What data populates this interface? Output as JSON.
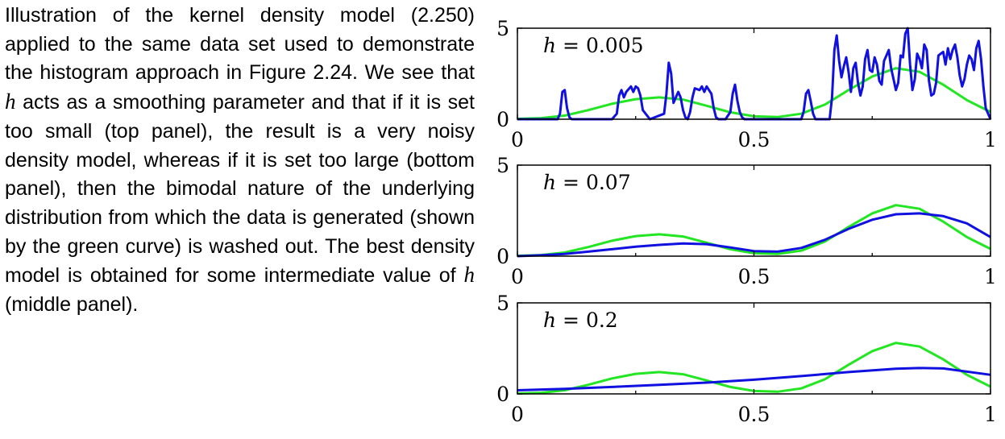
{
  "caption": {
    "part1": "Illustration of the kernel density model (2.250) applied to the same data set used to demonstrate the histogram approach in Figure 2.24. We see that ",
    "math1": "h",
    "part2": " acts as a smoothing parameter and that if it is set too small (top panel), the result is a very noisy density model, whereas if it is set too large (bottom panel), then the bimodal nature of the underlying distribution from which the data is generated (shown by the green curve) is washed out. The best den­sity model is obtained for some intermedi­ate value of ",
    "math2": "h",
    "part3": " (middle panel)."
  },
  "colors": {
    "true_density": "#22e622",
    "kde": "#1010e0"
  },
  "chart_data": [
    {
      "type": "line",
      "label_var": "h",
      "label_rest": " = 0.005",
      "bandwidth": 0.005,
      "xlim": [
        0,
        1
      ],
      "ylim": [
        0,
        5
      ],
      "xticks": [
        "0",
        "0.5",
        "1"
      ],
      "yticks": [
        "0",
        "5"
      ],
      "series": [
        {
          "role": "true-density",
          "x": [
            0,
            0.05,
            0.1,
            0.15,
            0.2,
            0.25,
            0.3,
            0.35,
            0.4,
            0.45,
            0.5,
            0.55,
            0.6,
            0.65,
            0.7,
            0.75,
            0.8,
            0.85,
            0.9,
            0.95,
            1.0
          ],
          "y": [
            0.02,
            0.06,
            0.2,
            0.5,
            0.85,
            1.1,
            1.2,
            1.08,
            0.74,
            0.38,
            0.16,
            0.12,
            0.3,
            0.8,
            1.6,
            2.35,
            2.8,
            2.6,
            1.9,
            1.05,
            0.4
          ]
        },
        {
          "role": "kde",
          "x": [
            0,
            0.085,
            0.09,
            0.095,
            0.1,
            0.105,
            0.11,
            0.115,
            0.2,
            0.21,
            0.215,
            0.22,
            0.225,
            0.23,
            0.24,
            0.245,
            0.25,
            0.255,
            0.26,
            0.265,
            0.28,
            0.31,
            0.315,
            0.32,
            0.325,
            0.33,
            0.335,
            0.34,
            0.345,
            0.35,
            0.355,
            0.36,
            0.365,
            0.37,
            0.375,
            0.385,
            0.39,
            0.395,
            0.4,
            0.405,
            0.41,
            0.415,
            0.42,
            0.425,
            0.43,
            0.44,
            0.45,
            0.455,
            0.46,
            0.465,
            0.47,
            0.475,
            0.48,
            0.6,
            0.605,
            0.61,
            0.615,
            0.62,
            0.625,
            0.63,
            0.66,
            0.665,
            0.67,
            0.675,
            0.68,
            0.685,
            0.69,
            0.695,
            0.7,
            0.705,
            0.71,
            0.715,
            0.72,
            0.725,
            0.73,
            0.735,
            0.74,
            0.745,
            0.75,
            0.755,
            0.76,
            0.765,
            0.77,
            0.775,
            0.78,
            0.785,
            0.79,
            0.795,
            0.8,
            0.805,
            0.81,
            0.815,
            0.82,
            0.825,
            0.83,
            0.835,
            0.84,
            0.845,
            0.85,
            0.855,
            0.86,
            0.865,
            0.87,
            0.875,
            0.88,
            0.885,
            0.89,
            0.895,
            0.9,
            0.905,
            0.91,
            0.915,
            0.92,
            0.925,
            0.93,
            0.935,
            0.94,
            0.945,
            0.95,
            0.955,
            0.96,
            0.965,
            0.97,
            0.975,
            0.98,
            0.985,
            0.99,
            1.0
          ],
          "y": [
            0,
            0,
            0.3,
            1.5,
            1.6,
            0.6,
            0.1,
            0,
            0,
            0.3,
            1.3,
            1.6,
            1.2,
            1.5,
            1.8,
            1.5,
            1.8,
            1.7,
            1.3,
            0.5,
            0,
            0.3,
            1.4,
            3.1,
            2.5,
            0.9,
            1.2,
            1.5,
            1.2,
            0.5,
            0.1,
            0,
            0.4,
            1.2,
            1.7,
            1.6,
            1.8,
            1.5,
            1.8,
            1.6,
            1.4,
            0.6,
            0.1,
            0,
            0,
            0,
            0.4,
            1.4,
            1.9,
            1.0,
            0.4,
            0.1,
            0,
            0,
            0.4,
            1.4,
            1.6,
            1.0,
            0.3,
            0,
            0,
            1.2,
            3.8,
            4.6,
            3.2,
            2.3,
            2.9,
            3.4,
            2.6,
            1.5,
            2.8,
            3.1,
            2.0,
            1.3,
            1.8,
            3.3,
            3.8,
            2.7,
            2.6,
            3.4,
            3.0,
            2.1,
            1.9,
            3.2,
            3.5,
            3.8,
            2.8,
            2.2,
            1.6,
            2.0,
            3.5,
            3.4,
            4.7,
            5.0,
            3.0,
            1.6,
            2.2,
            3.6,
            3.3,
            2.8,
            4.1,
            3.8,
            2.1,
            1.3,
            1.4,
            2.0,
            3.5,
            3.6,
            3.7,
            3.0,
            3.9,
            3.3,
            3.8,
            4.1,
            3.4,
            2.4,
            1.8,
            2.2,
            3.0,
            3.5,
            3.3,
            2.7,
            3.9,
            4.3,
            3.3,
            1.8,
            0.6,
            0
          ]
        }
      ]
    },
    {
      "type": "line",
      "label_var": "h",
      "label_rest": " = 0.07",
      "bandwidth": 0.07,
      "xlim": [
        0,
        1
      ],
      "ylim": [
        0,
        5
      ],
      "xticks": [
        "0",
        "0.5",
        "1"
      ],
      "yticks": [
        "0",
        "5"
      ],
      "series": [
        {
          "role": "true-density",
          "x": [
            0,
            0.05,
            0.1,
            0.15,
            0.2,
            0.25,
            0.3,
            0.35,
            0.4,
            0.45,
            0.5,
            0.55,
            0.6,
            0.65,
            0.7,
            0.75,
            0.8,
            0.85,
            0.9,
            0.95,
            1.0
          ],
          "y": [
            0.02,
            0.06,
            0.2,
            0.5,
            0.85,
            1.1,
            1.2,
            1.08,
            0.74,
            0.38,
            0.16,
            0.12,
            0.3,
            0.8,
            1.6,
            2.35,
            2.8,
            2.6,
            1.9,
            1.05,
            0.4
          ]
        },
        {
          "role": "kde",
          "x": [
            0,
            0.05,
            0.1,
            0.15,
            0.2,
            0.25,
            0.3,
            0.35,
            0.4,
            0.45,
            0.5,
            0.55,
            0.6,
            0.65,
            0.7,
            0.75,
            0.8,
            0.85,
            0.9,
            0.95,
            1.0
          ],
          "y": [
            0.0,
            0.05,
            0.12,
            0.25,
            0.38,
            0.52,
            0.62,
            0.7,
            0.66,
            0.48,
            0.28,
            0.25,
            0.45,
            0.9,
            1.5,
            2.0,
            2.3,
            2.35,
            2.2,
            1.8,
            1.05
          ]
        }
      ]
    },
    {
      "type": "line",
      "label_var": "h",
      "label_rest": " = 0.2",
      "bandwidth": 0.2,
      "xlim": [
        0,
        1
      ],
      "ylim": [
        0,
        5
      ],
      "xticks": [
        "0",
        "0.5",
        "1"
      ],
      "yticks": [
        "0",
        "5"
      ],
      "series": [
        {
          "role": "true-density",
          "x": [
            0,
            0.05,
            0.1,
            0.15,
            0.2,
            0.25,
            0.3,
            0.35,
            0.4,
            0.45,
            0.5,
            0.55,
            0.6,
            0.65,
            0.7,
            0.75,
            0.8,
            0.85,
            0.9,
            0.95,
            1.0
          ],
          "y": [
            0.02,
            0.06,
            0.2,
            0.5,
            0.85,
            1.1,
            1.2,
            1.08,
            0.74,
            0.38,
            0.16,
            0.12,
            0.3,
            0.8,
            1.6,
            2.35,
            2.8,
            2.6,
            1.9,
            1.05,
            0.4
          ]
        },
        {
          "role": "kde",
          "x": [
            0,
            0.1,
            0.2,
            0.3,
            0.4,
            0.5,
            0.6,
            0.7,
            0.8,
            0.85,
            0.9,
            1.0
          ],
          "y": [
            0.2,
            0.28,
            0.38,
            0.5,
            0.62,
            0.78,
            0.98,
            1.2,
            1.38,
            1.42,
            1.4,
            1.05
          ]
        }
      ]
    }
  ]
}
